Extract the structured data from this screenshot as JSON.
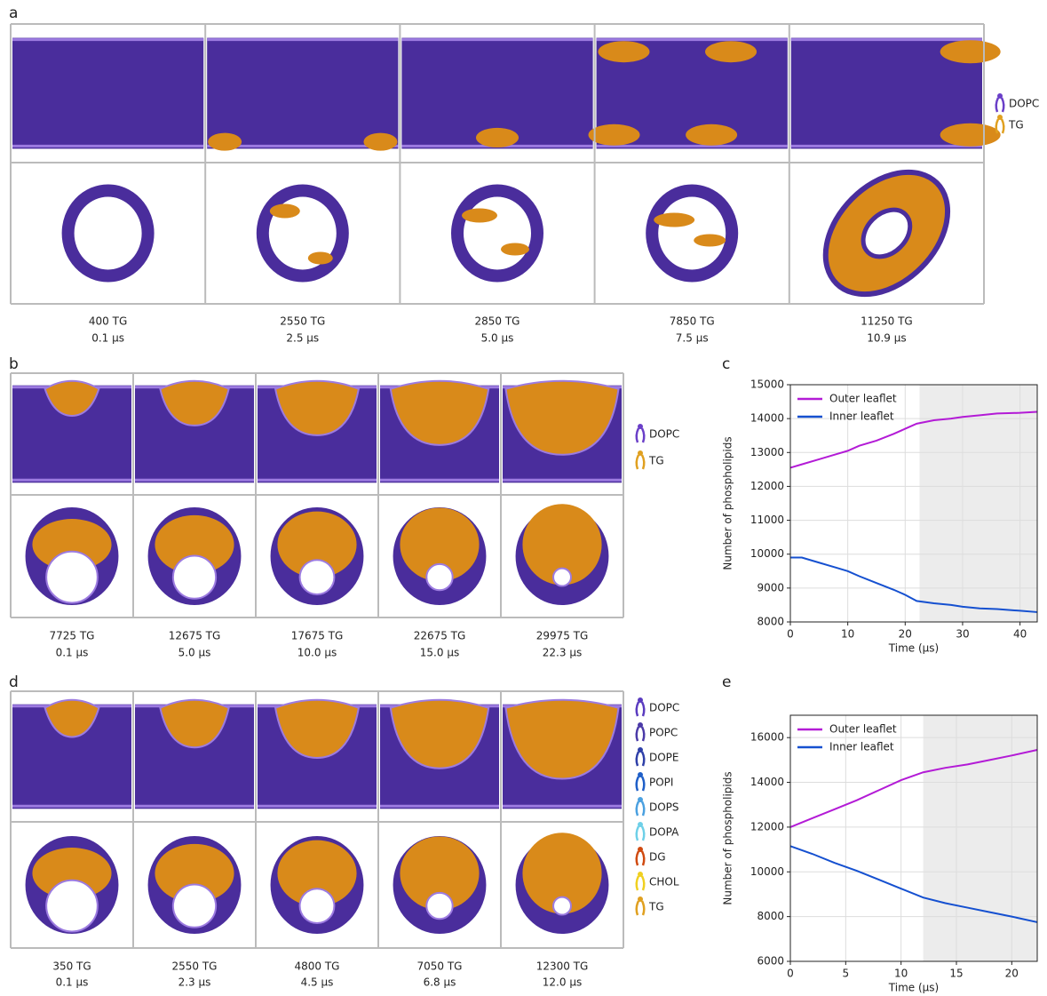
{
  "panels": {
    "a": {
      "label": "a",
      "legend": [
        {
          "name": "DOPC",
          "color": "#6a3fc8"
        },
        {
          "name": "TG",
          "color": "#e0a020"
        }
      ],
      "snapshots": [
        {
          "tg": "400 TG",
          "time": "0.1 μs"
        },
        {
          "tg": "2550 TG",
          "time": "2.5 μs"
        },
        {
          "tg": "2850 TG",
          "time": "5.0 μs"
        },
        {
          "tg": "7850 TG",
          "time": "7.5 μs"
        },
        {
          "tg": "11250 TG",
          "time": "10.9 μs"
        }
      ]
    },
    "b": {
      "label": "b",
      "legend": [
        {
          "name": "DOPC",
          "color": "#6a3fc8"
        },
        {
          "name": "TG",
          "color": "#e0a020"
        }
      ],
      "snapshots": [
        {
          "tg": "7725 TG",
          "time": "0.1 μs"
        },
        {
          "tg": "12675 TG",
          "time": "5.0 μs"
        },
        {
          "tg": "17675 TG",
          "time": "10.0 μs"
        },
        {
          "tg": "22675 TG",
          "time": "15.0 μs"
        },
        {
          "tg": "29975 TG",
          "time": "22.3 μs"
        }
      ]
    },
    "d": {
      "label": "d",
      "legend": [
        {
          "name": "DOPC",
          "color": "#5a3bbf"
        },
        {
          "name": "POPC",
          "color": "#4b3aa8"
        },
        {
          "name": "DOPE",
          "color": "#2e3fa8"
        },
        {
          "name": "POPI",
          "color": "#1f5fc8"
        },
        {
          "name": "DOPS",
          "color": "#4aa0e0"
        },
        {
          "name": "DOPA",
          "color": "#6ed0e8"
        },
        {
          "name": "DG",
          "color": "#d04a10"
        },
        {
          "name": "CHOL",
          "color": "#f0d020"
        },
        {
          "name": "TG",
          "color": "#e0a020"
        }
      ],
      "snapshots": [
        {
          "tg": "350 TG",
          "time": "0.1 μs"
        },
        {
          "tg": "2550 TG",
          "time": "2.3 μs"
        },
        {
          "tg": "4800 TG",
          "time": "4.5 μs"
        },
        {
          "tg": "7050 TG",
          "time": "6.8 μs"
        },
        {
          "tg": "12300 TG",
          "time": "12.0 μs"
        }
      ]
    }
  },
  "chart_data": [
    {
      "type": "line",
      "panel_label": "c",
      "x_label": "Time (μs)",
      "y_label": "Number of phospholipids",
      "x": [
        0,
        2,
        5,
        8,
        10,
        12,
        15,
        18,
        20,
        22,
        25,
        28,
        30,
        33,
        36,
        40,
        43
      ],
      "series": [
        {
          "name": "Outer leaflet",
          "color": "#b31bd6",
          "values": [
            12550,
            12650,
            12800,
            12950,
            13050,
            13200,
            13350,
            13550,
            13700,
            13850,
            13950,
            14000,
            14050,
            14100,
            14150,
            14170,
            14200
          ]
        },
        {
          "name": "Inner leaflet",
          "color": "#1550d0",
          "values": [
            9900,
            9900,
            9750,
            9600,
            9500,
            9350,
            9150,
            8950,
            8800,
            8620,
            8550,
            8500,
            8450,
            8400,
            8380,
            8330,
            8290
          ]
        }
      ],
      "xlim": [
        0,
        43
      ],
      "ylim": [
        8000,
        15000
      ],
      "xticks": [
        0,
        10,
        20,
        30,
        40
      ],
      "yticks": [
        8000,
        9000,
        10000,
        11000,
        12000,
        13000,
        14000,
        15000
      ],
      "grid": true,
      "shade_from": 22.5,
      "legend": "upper left"
    },
    {
      "type": "line",
      "panel_label": "e",
      "x_label": "Time (μs)",
      "y_label": "Number of phospholipids",
      "x": [
        0,
        2,
        4,
        6,
        8,
        10,
        12,
        14,
        16,
        18,
        20,
        22.3
      ],
      "series": [
        {
          "name": "Outer leaflet",
          "color": "#b31bd6",
          "values": [
            12000,
            12400,
            12800,
            13200,
            13650,
            14100,
            14450,
            14650,
            14800,
            15000,
            15200,
            15450
          ]
        },
        {
          "name": "Inner leaflet",
          "color": "#1550d0",
          "values": [
            11150,
            10800,
            10400,
            10050,
            9650,
            9250,
            8850,
            8600,
            8400,
            8200,
            8000,
            7750
          ]
        }
      ],
      "xlim": [
        0,
        22.3
      ],
      "ylim": [
        6000,
        17000
      ],
      "xticks": [
        0,
        5,
        10,
        15,
        20
      ],
      "yticks": [
        6000,
        8000,
        10000,
        12000,
        14000,
        16000
      ],
      "grid": true,
      "shade_from": 12,
      "legend": "upper left"
    }
  ]
}
